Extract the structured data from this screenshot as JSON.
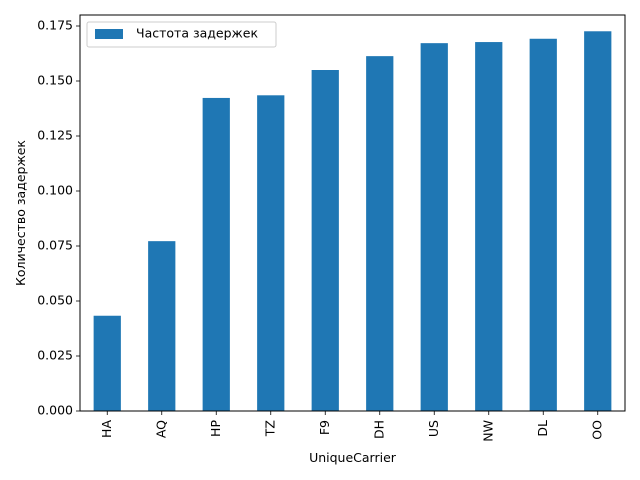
{
  "chart_data": {
    "type": "bar",
    "categories": [
      "HA",
      "AQ",
      "HP",
      "TZ",
      "F9",
      "DH",
      "US",
      "NW",
      "DL",
      "OO"
    ],
    "series": [
      {
        "name": "Частота задержек",
        "values": [
          0.0433,
          0.0772,
          0.1423,
          0.1435,
          0.155,
          0.1613,
          0.1672,
          0.1677,
          0.1692,
          0.1726
        ],
        "color": "#1f77b4"
      }
    ],
    "xlabel": "UniqueCarrier",
    "ylabel": "Количество задержек",
    "ylim": [
      0,
      0.18
    ],
    "yticks": [
      "0.000",
      "0.025",
      "0.050",
      "0.075",
      "0.100",
      "0.125",
      "0.150",
      "0.175"
    ],
    "ytick_values": [
      0,
      0.025,
      0.05,
      0.075,
      0.1,
      0.125,
      0.15,
      0.175
    ],
    "grid": false,
    "legend_position": "top-left"
  }
}
